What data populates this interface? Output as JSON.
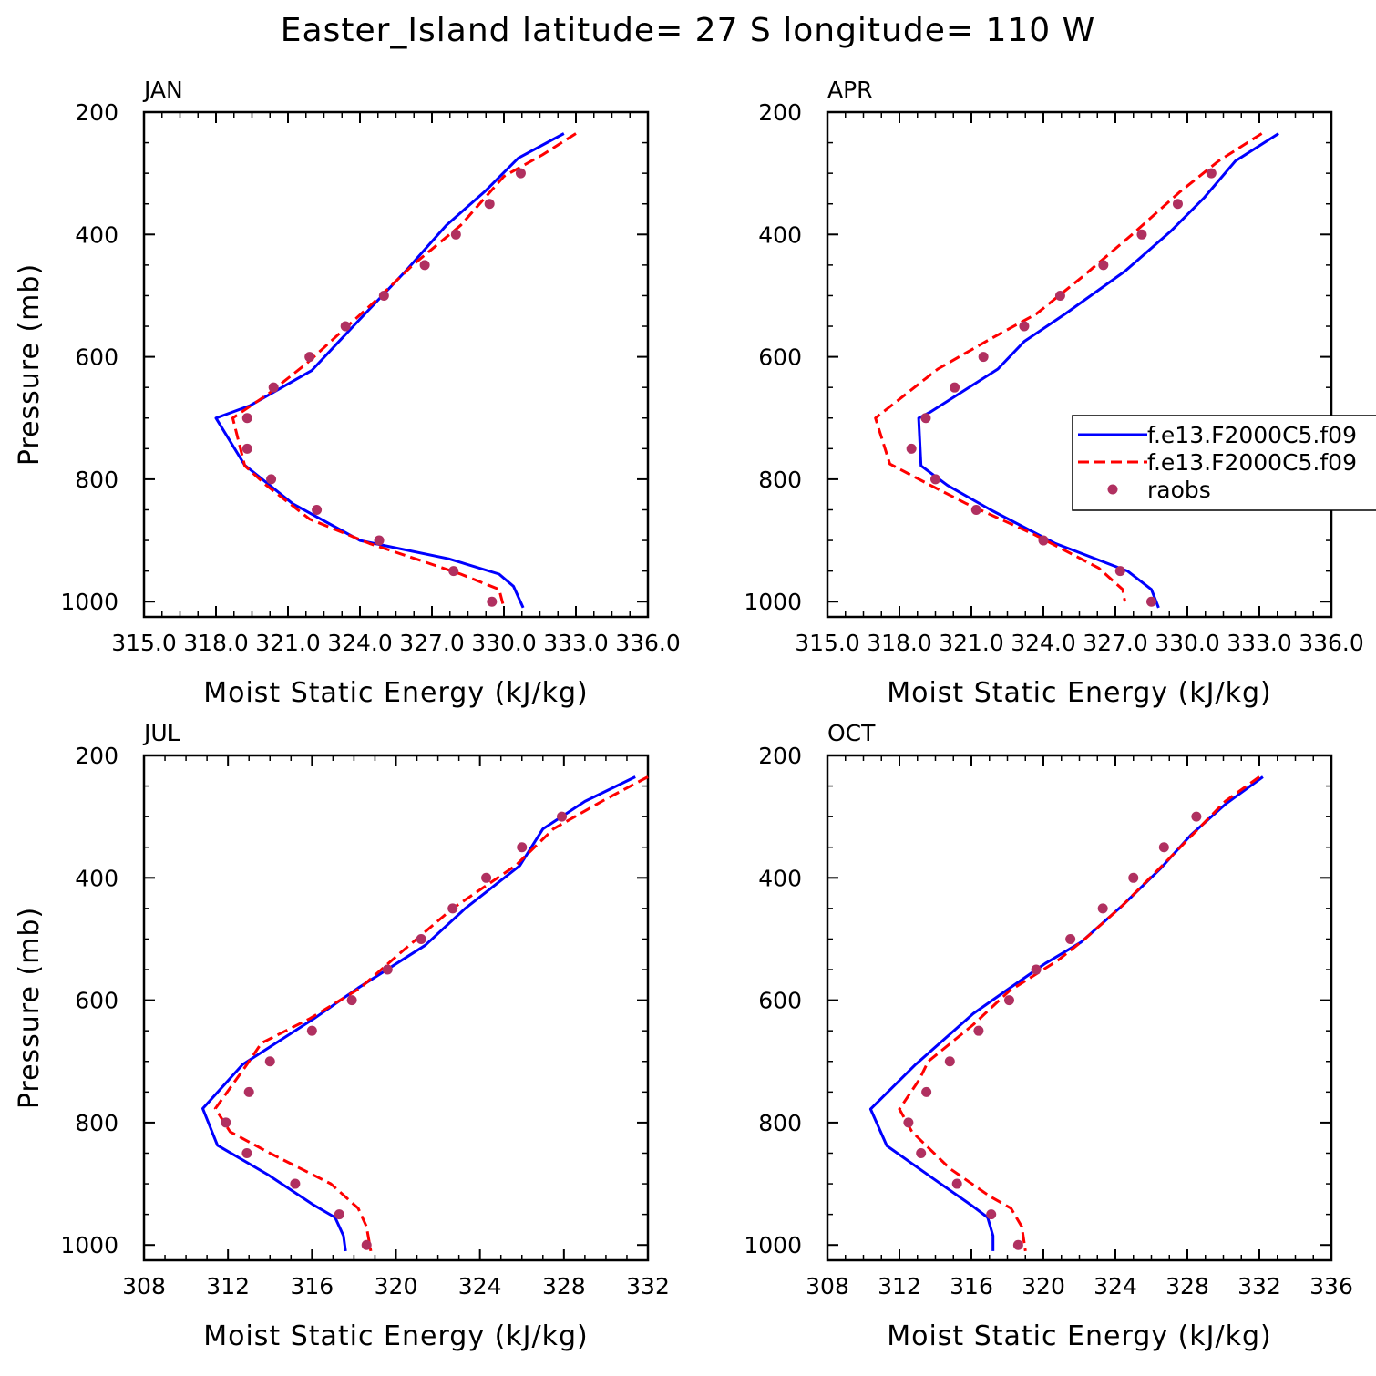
{
  "figure": {
    "title": "Easter_Island  latitude= 27 S longitude= 110 W",
    "colors": {
      "model1": "#0000ff",
      "model2": "#ff0000",
      "raobs": "#b03060"
    }
  },
  "chart_data": [
    {
      "type": "line",
      "panel_title": "JAN",
      "xlabel": "Moist Static Energy (kJ/kg)",
      "ylabel": "Pressure (mb)",
      "xlim": [
        315.0,
        336.0
      ],
      "xticks": [
        315,
        318,
        321,
        324,
        327,
        330,
        333,
        336
      ],
      "xtick_labels": [
        "315.0",
        "318.0",
        "321.0",
        "324.0",
        "327.0",
        "330.0",
        "333.0",
        "336.0"
      ],
      "ylim": [
        1025,
        200
      ],
      "yticks": [
        200,
        400,
        600,
        800,
        1000
      ],
      "ytick_labels": [
        "200",
        "400",
        "600",
        "800",
        "1000"
      ],
      "series": [
        {
          "name": "f.e13.F2000C5.f09",
          "style": "solid",
          "color": "#0000ff",
          "x": [
            332.5,
            330.6,
            329.2,
            327.6,
            325.9,
            324.2,
            323.0,
            322.0,
            319.4,
            318.0,
            319.2,
            321.2,
            324.0,
            327.7,
            329.8,
            330.4,
            330.8
          ],
          "y": [
            235,
            275,
            330,
            385,
            460,
            530,
            580,
            622,
            680,
            700,
            777,
            840,
            900,
            930,
            955,
            975,
            1010
          ]
        },
        {
          "name": "f.e13.F2000C5.f09",
          "style": "dashed",
          "color": "#ff0000",
          "x": [
            333.0,
            331.6,
            330.0,
            328.2,
            326.2,
            324.6,
            323.2,
            321.8,
            320.2,
            318.7,
            319.2,
            320.1,
            321.9,
            324.4,
            326.7,
            328.2,
            329.8,
            330.0
          ],
          "y": [
            235,
            270,
            305,
            385,
            450,
            510,
            560,
            610,
            660,
            700,
            778,
            810,
            865,
            905,
            935,
            955,
            980,
            1010
          ]
        }
      ],
      "raobs": {
        "name": "raobs",
        "color": "#b03060",
        "x": [
          330.7,
          329.4,
          328.0,
          326.7,
          325.0,
          323.4,
          321.9,
          320.4,
          319.3,
          319.3,
          320.3,
          322.2,
          324.8,
          327.9,
          329.5
        ],
        "y": [
          300,
          350,
          400,
          450,
          500,
          550,
          600,
          650,
          700,
          750,
          800,
          850,
          900,
          950,
          1000
        ]
      }
    },
    {
      "type": "line",
      "panel_title": "APR",
      "xlabel": "Moist Static Energy (kJ/kg)",
      "ylabel": "",
      "xlim": [
        315.0,
        336.0
      ],
      "xticks": [
        315,
        318,
        321,
        324,
        327,
        330,
        333,
        336
      ],
      "xtick_labels": [
        "315.0",
        "318.0",
        "321.0",
        "324.0",
        "327.0",
        "330.0",
        "333.0",
        "336.0"
      ],
      "ylim": [
        1025,
        200
      ],
      "yticks": [
        200,
        400,
        600,
        800,
        1000
      ],
      "ytick_labels": [
        "200",
        "400",
        "600",
        "800",
        "1000"
      ],
      "series": [
        {
          "name": "f.e13.F2000C5.f09",
          "style": "solid",
          "color": "#0000ff",
          "x": [
            333.8,
            332.0,
            330.7,
            329.3,
            327.4,
            324.9,
            323.2,
            322.1,
            319.3,
            318.8,
            318.9,
            320.0,
            321.8,
            324.5,
            327.5,
            328.5,
            328.8
          ],
          "y": [
            235,
            280,
            340,
            395,
            460,
            530,
            575,
            620,
            690,
            700,
            778,
            810,
            850,
            905,
            950,
            980,
            1010
          ]
        },
        {
          "name": "f.e13.F2000C5.f09",
          "style": "dashed",
          "color": "#ff0000",
          "x": [
            333.1,
            331.3,
            329.7,
            327.7,
            325.6,
            323.7,
            321.6,
            319.6,
            317.0,
            317.6,
            319.3,
            320.8,
            323.6,
            326.3,
            327.3,
            327.4
          ],
          "y": [
            235,
            280,
            330,
            400,
            470,
            530,
            575,
            620,
            700,
            775,
            810,
            840,
            890,
            945,
            980,
            1000
          ]
        }
      ],
      "raobs": {
        "name": "raobs",
        "color": "#b03060",
        "x": [
          331.0,
          329.6,
          328.1,
          326.5,
          324.7,
          323.2,
          321.5,
          320.3,
          319.1,
          318.5,
          319.5,
          321.2,
          324.0,
          327.2,
          328.5
        ],
        "y": [
          300,
          350,
          400,
          450,
          500,
          550,
          600,
          650,
          700,
          750,
          800,
          850,
          900,
          950,
          1000
        ]
      }
    },
    {
      "type": "line",
      "panel_title": "JUL",
      "xlabel": "Moist Static Energy (kJ/kg)",
      "ylabel": "Pressure (mb)",
      "xlim": [
        308,
        332
      ],
      "xticks": [
        308,
        312,
        316,
        320,
        324,
        328,
        332
      ],
      "xtick_labels": [
        "308",
        "312",
        "316",
        "320",
        "324",
        "328",
        "332"
      ],
      "ylim": [
        1025,
        200
      ],
      "yticks": [
        200,
        400,
        600,
        800,
        1000
      ],
      "ytick_labels": [
        "200",
        "400",
        "600",
        "800",
        "1000"
      ],
      "series": [
        {
          "name": "f.e13.F2000C5.f09",
          "style": "solid",
          "color": "#0000ff",
          "x": [
            331.4,
            329.0,
            327.0,
            325.9,
            323.3,
            321.4,
            318.2,
            316.1,
            312.7,
            310.8,
            311.5,
            313.9,
            316.1,
            317.1,
            317.5,
            317.6
          ],
          "y": [
            235,
            275,
            320,
            380,
            450,
            510,
            580,
            630,
            705,
            777,
            837,
            885,
            935,
            955,
            985,
            1010
          ]
        },
        {
          "name": "f.e13.F2000C5.f09",
          "style": "dashed",
          "color": "#ff0000",
          "x": [
            332.0,
            329.8,
            327.5,
            325.7,
            322.7,
            320.3,
            318.3,
            315.9,
            313.6,
            312.8,
            311.4,
            312.1,
            314.0,
            316.9,
            318.2,
            318.6,
            318.8
          ],
          "y": [
            235,
            275,
            320,
            380,
            450,
            520,
            580,
            630,
            670,
            710,
            777,
            815,
            850,
            900,
            940,
            970,
            1010
          ]
        }
      ],
      "raobs": {
        "name": "raobs",
        "color": "#b03060",
        "x": [
          327.9,
          326.0,
          324.3,
          322.7,
          321.2,
          319.6,
          317.9,
          316.0,
          314.0,
          313.0,
          311.9,
          312.9,
          315.2,
          317.3,
          318.6
        ],
        "y": [
          300,
          350,
          400,
          450,
          500,
          550,
          600,
          650,
          700,
          750,
          800,
          850,
          900,
          950,
          1000
        ]
      }
    },
    {
      "type": "line",
      "panel_title": "OCT",
      "xlabel": "Moist Static Energy (kJ/kg)",
      "ylabel": "",
      "xlim": [
        308,
        336
      ],
      "xticks": [
        308,
        312,
        316,
        320,
        324,
        328,
        332,
        336
      ],
      "xtick_labels": [
        "308",
        "312",
        "316",
        "320",
        "324",
        "328",
        "332",
        "336"
      ],
      "ylim": [
        1025,
        200
      ],
      "yticks": [
        200,
        400,
        600,
        800,
        1000
      ],
      "ytick_labels": [
        "200",
        "400",
        "600",
        "800",
        "1000"
      ],
      "series": [
        {
          "name": "f.e13.F2000C5.f09",
          "style": "solid",
          "color": "#0000ff",
          "x": [
            332.2,
            330.1,
            328.2,
            326.5,
            324.4,
            322.1,
            320.1,
            317.9,
            316.1,
            312.9,
            310.4,
            311.3,
            313.8,
            316.0,
            316.9,
            317.2,
            317.2
          ],
          "y": [
            235,
            280,
            330,
            385,
            445,
            505,
            540,
            585,
            622,
            705,
            778,
            838,
            890,
            935,
            955,
            985,
            1010
          ]
        },
        {
          "name": "f.e13.F2000C5.f09",
          "style": "dashed",
          "color": "#ff0000",
          "x": [
            332.0,
            330.1,
            328.6,
            326.6,
            324.4,
            322.3,
            320.8,
            318.1,
            316.1,
            313.6,
            313.1,
            312.0,
            312.7,
            314.8,
            317.0,
            318.2,
            318.8,
            319.0
          ],
          "y": [
            235,
            275,
            320,
            380,
            445,
            500,
            535,
            585,
            640,
            700,
            730,
            778,
            815,
            875,
            920,
            940,
            970,
            1010
          ]
        }
      ],
      "raobs": {
        "name": "raobs",
        "color": "#b03060",
        "x": [
          328.5,
          326.7,
          325.0,
          323.3,
          321.5,
          319.6,
          318.1,
          316.4,
          314.8,
          313.5,
          312.5,
          313.2,
          315.2,
          317.1,
          318.6
        ],
        "y": [
          300,
          350,
          400,
          450,
          500,
          550,
          600,
          650,
          700,
          750,
          800,
          850,
          900,
          950,
          1000
        ]
      }
    }
  ],
  "legend": {
    "panel": 1,
    "placement": "right",
    "entries": [
      {
        "label": "f.e13.F2000C5.f09",
        "style": "solid",
        "color": "#0000ff"
      },
      {
        "label": "f.e13.F2000C5.f09",
        "style": "dashed",
        "color": "#ff0000"
      },
      {
        "label": "raobs",
        "style": "marker",
        "color": "#b03060"
      }
    ]
  }
}
